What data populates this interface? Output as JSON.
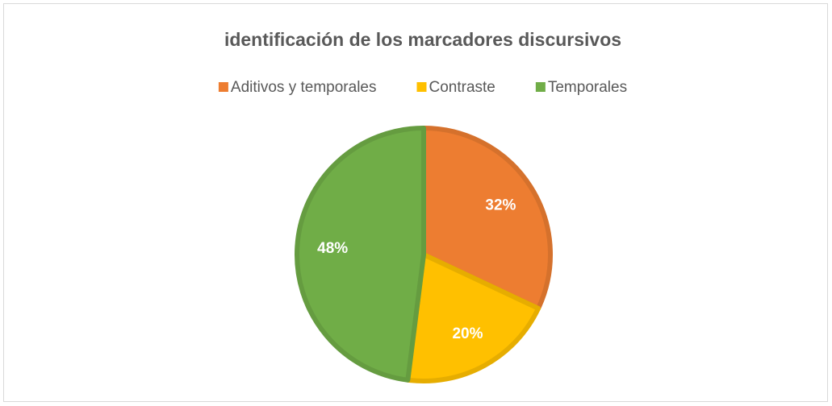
{
  "chart_data": {
    "type": "pie",
    "title": "identificación de los marcadores discursivos",
    "categories": [
      "Aditivos y temporales",
      "Contraste",
      "Temporales"
    ],
    "values": [
      32,
      20,
      48
    ],
    "value_labels": [
      "32%",
      "20%",
      "48%"
    ],
    "colors": [
      "#ED7D31",
      "#FFC000",
      "#70AD47"
    ],
    "legend": "top"
  }
}
